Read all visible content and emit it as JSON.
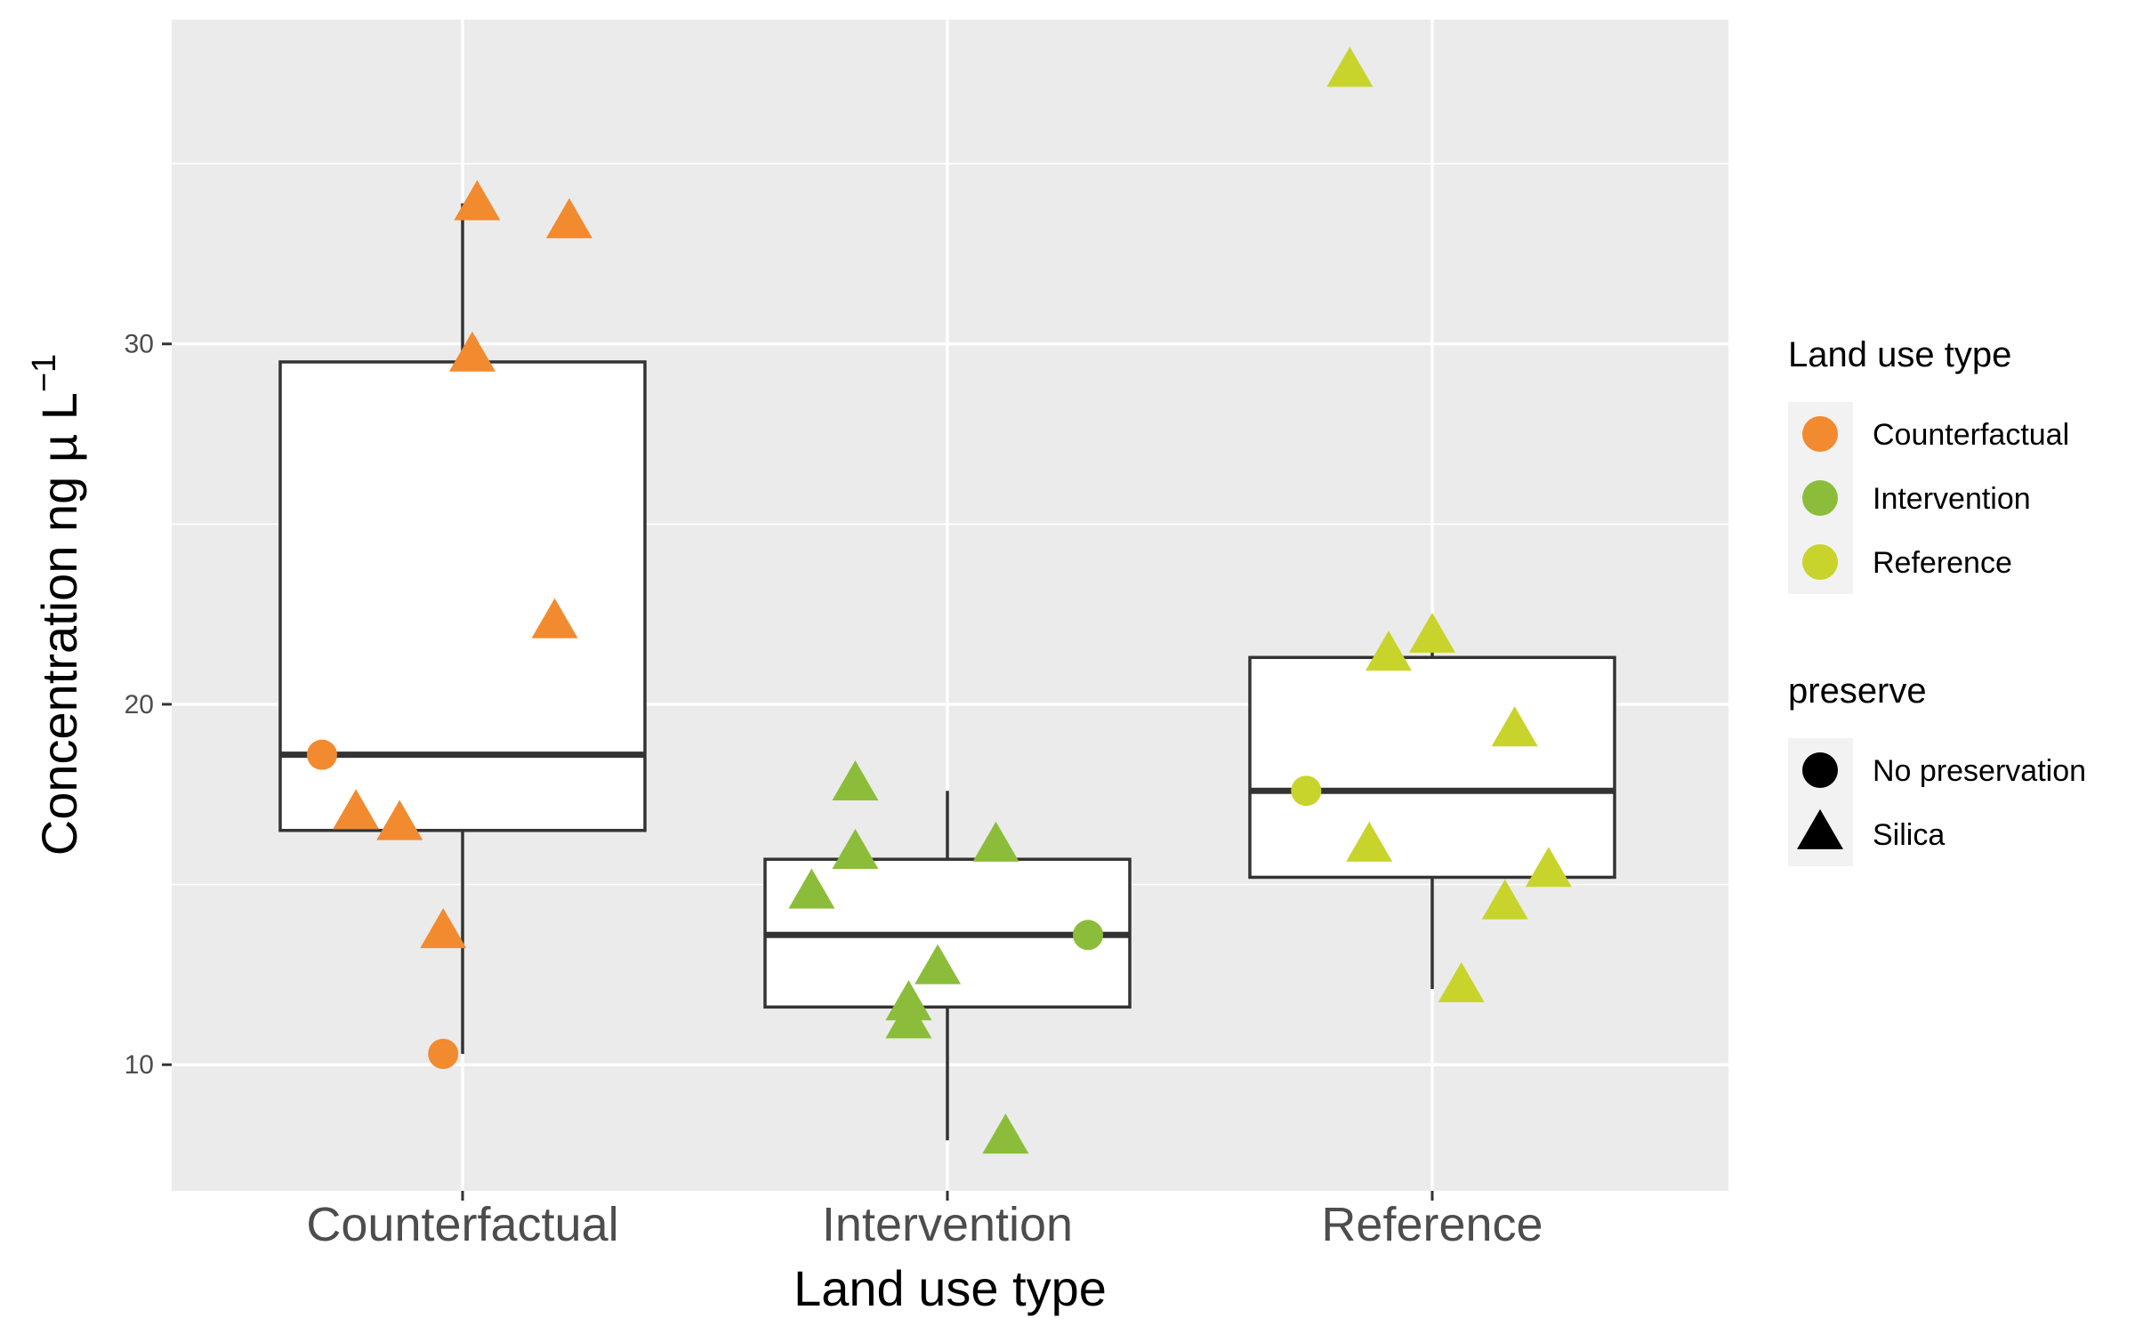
{
  "chart_data": {
    "type": "boxplot",
    "xlabel": "Land use type",
    "ylabel": "Concentration ng µ L",
    "ylabel_superscript": "−1",
    "categories": [
      "Counterfactual",
      "Intervention",
      "Reference"
    ],
    "y_ticks": [
      10,
      20,
      30
    ],
    "ylim": [
      6.5,
      39.0
    ],
    "grid": true,
    "boxes": [
      {
        "category": "Counterfactual",
        "whisker_low": 10.3,
        "q1": 16.5,
        "median": 18.6,
        "q3": 29.5,
        "whisker_high": 33.9
      },
      {
        "category": "Intervention",
        "whisker_low": 7.9,
        "q1": 11.6,
        "median": 13.6,
        "q3": 15.7,
        "whisker_high": 17.6
      },
      {
        "category": "Reference",
        "whisker_low": 12.1,
        "q1": 15.2,
        "median": 17.6,
        "q3": 21.3,
        "whisker_high": 22.0
      }
    ],
    "points": [
      {
        "category": "Counterfactual",
        "jitter": -0.29,
        "y": 18.6,
        "preserve": "No preservation"
      },
      {
        "category": "Counterfactual",
        "jitter": -0.22,
        "y": 16.9,
        "preserve": "Silica"
      },
      {
        "category": "Counterfactual",
        "jitter": -0.13,
        "y": 16.6,
        "preserve": "Silica"
      },
      {
        "category": "Counterfactual",
        "jitter": -0.04,
        "y": 13.6,
        "preserve": "Silica"
      },
      {
        "category": "Counterfactual",
        "jitter": -0.04,
        "y": 10.3,
        "preserve": "No preservation"
      },
      {
        "category": "Counterfactual",
        "jitter": 0.02,
        "y": 29.6,
        "preserve": "Silica"
      },
      {
        "category": "Counterfactual",
        "jitter": 0.03,
        "y": 33.8,
        "preserve": "Silica"
      },
      {
        "category": "Counterfactual",
        "jitter": 0.19,
        "y": 22.2,
        "preserve": "Silica"
      },
      {
        "category": "Counterfactual",
        "jitter": 0.22,
        "y": 33.3,
        "preserve": "Silica"
      },
      {
        "category": "Intervention",
        "jitter": -0.28,
        "y": 14.7,
        "preserve": "Silica"
      },
      {
        "category": "Intervention",
        "jitter": -0.19,
        "y": 17.7,
        "preserve": "Silica"
      },
      {
        "category": "Intervention",
        "jitter": -0.19,
        "y": 15.8,
        "preserve": "Silica"
      },
      {
        "category": "Intervention",
        "jitter": -0.08,
        "y": 11.6,
        "preserve": "Silica"
      },
      {
        "category": "Intervention",
        "jitter": -0.08,
        "y": 11.1,
        "preserve": "Silica"
      },
      {
        "category": "Intervention",
        "jitter": -0.02,
        "y": 12.6,
        "preserve": "Silica"
      },
      {
        "category": "Intervention",
        "jitter": 0.1,
        "y": 16.0,
        "preserve": "Silica"
      },
      {
        "category": "Intervention",
        "jitter": 0.12,
        "y": 7.9,
        "preserve": "Silica"
      },
      {
        "category": "Intervention",
        "jitter": 0.29,
        "y": 13.6,
        "preserve": "No preservation"
      },
      {
        "category": "Reference",
        "jitter": -0.26,
        "y": 17.6,
        "preserve": "No preservation"
      },
      {
        "category": "Reference",
        "jitter": -0.17,
        "y": 37.5,
        "preserve": "Silica"
      },
      {
        "category": "Reference",
        "jitter": -0.13,
        "y": 16.0,
        "preserve": "Silica"
      },
      {
        "category": "Reference",
        "jitter": -0.09,
        "y": 21.3,
        "preserve": "Silica"
      },
      {
        "category": "Reference",
        "jitter": 0.0,
        "y": 21.8,
        "preserve": "Silica"
      },
      {
        "category": "Reference",
        "jitter": 0.06,
        "y": 12.1,
        "preserve": "Silica"
      },
      {
        "category": "Reference",
        "jitter": 0.15,
        "y": 14.4,
        "preserve": "Silica"
      },
      {
        "category": "Reference",
        "jitter": 0.17,
        "y": 19.2,
        "preserve": "Silica"
      },
      {
        "category": "Reference",
        "jitter": 0.24,
        "y": 15.3,
        "preserve": "Silica"
      }
    ],
    "legends": [
      {
        "title": "Land use type",
        "placement": "right",
        "items": [
          {
            "label": "Counterfactual",
            "shape": "circle",
            "color": "#F28A30"
          },
          {
            "label": "Intervention",
            "shape": "circle",
            "color": "#8BBD3A"
          },
          {
            "label": "Reference",
            "shape": "circle",
            "color": "#C8D42C"
          }
        ]
      },
      {
        "title": "preserve",
        "placement": "right",
        "items": [
          {
            "label": "No preservation",
            "shape": "circle",
            "color": "#000000"
          },
          {
            "label": "Silica",
            "shape": "triangle",
            "color": "#000000"
          }
        ]
      }
    ],
    "colors": {
      "Counterfactual": "#F28A30",
      "Intervention": "#8BBD3A",
      "Reference": "#C8D42C",
      "panel": "#EBEBEB",
      "gridline": "#FFFFFF",
      "box_stroke": "#333333"
    }
  }
}
